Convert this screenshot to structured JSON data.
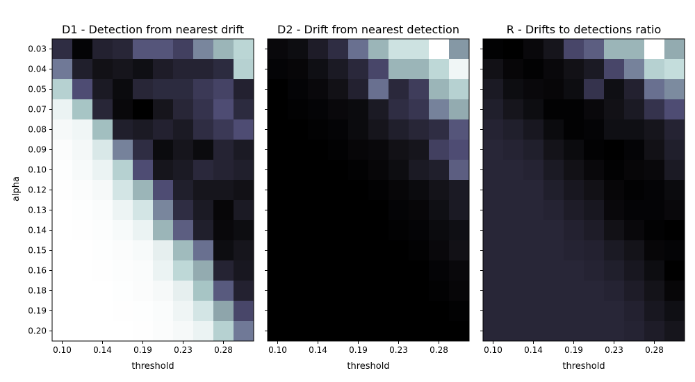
{
  "figure": {
    "ylabel": "alpha",
    "alpha_ticks": [
      "0.03",
      "0.04",
      "0.05",
      "0.07",
      "0.08",
      "0.09",
      "0.10",
      "0.12",
      "0.13",
      "0.14",
      "0.15",
      "0.16",
      "0.18",
      "0.19",
      "0.20"
    ],
    "threshold_ticks": [
      "0.10",
      "0.14",
      "0.19",
      "0.23",
      "0.28"
    ],
    "colormap": "bone_r",
    "colormap_stops": [
      "#ffffff",
      "#f4f8f8",
      "#e2eded",
      "#c4dddc",
      "#a7c5c5",
      "#8ea5ab",
      "#707997",
      "#4e4c73",
      "#2f2d43",
      "#16151c",
      "#000000"
    ]
  },
  "chart_data": [
    {
      "type": "heatmap",
      "title": "D1 - Detection from nearest drift",
      "xlabel": "threshold",
      "ylabel": "alpha",
      "columns": 10,
      "rows": 15,
      "x_tick_labels": [
        "0.10",
        "0.14",
        "0.19",
        "0.23",
        "0.28"
      ],
      "y_tick_labels": [
        "0.03",
        "0.04",
        "0.05",
        "0.07",
        "0.08",
        "0.09",
        "0.10",
        "0.12",
        "0.13",
        "0.14",
        "0.15",
        "0.16",
        "0.18",
        "0.19",
        "0.20"
      ],
      "values": [
        [
          0.8,
          0.98,
          0.85,
          0.83,
          0.68,
          0.68,
          0.74,
          0.57,
          0.45,
          0.33
        ],
        [
          0.6,
          0.86,
          0.92,
          0.9,
          0.93,
          0.87,
          0.84,
          0.84,
          0.81,
          0.35
        ],
        [
          0.35,
          0.7,
          0.88,
          0.95,
          0.83,
          0.81,
          0.81,
          0.76,
          0.73,
          0.85
        ],
        [
          0.15,
          0.4,
          0.83,
          0.96,
          1.0,
          0.9,
          0.83,
          0.78,
          0.7,
          0.81
        ],
        [
          0.08,
          0.12,
          0.42,
          0.86,
          0.88,
          0.85,
          0.88,
          0.8,
          0.76,
          0.7
        ],
        [
          0.04,
          0.1,
          0.23,
          0.58,
          0.8,
          0.95,
          0.9,
          0.95,
          0.84,
          0.88
        ],
        [
          0.02,
          0.07,
          0.15,
          0.35,
          0.7,
          0.9,
          0.88,
          0.82,
          0.84,
          0.86
        ],
        [
          0.01,
          0.04,
          0.08,
          0.25,
          0.45,
          0.7,
          0.86,
          0.9,
          0.9,
          0.92
        ],
        [
          0.0,
          0.02,
          0.05,
          0.14,
          0.25,
          0.57,
          0.8,
          0.88,
          0.97,
          0.88
        ],
        [
          0.0,
          0.01,
          0.03,
          0.07,
          0.15,
          0.45,
          0.66,
          0.86,
          0.96,
          0.94
        ],
        [
          0.0,
          0.0,
          0.02,
          0.04,
          0.07,
          0.18,
          0.43,
          0.62,
          0.94,
          0.9
        ],
        [
          0.0,
          0.0,
          0.01,
          0.03,
          0.05,
          0.15,
          0.32,
          0.48,
          0.84,
          0.89
        ],
        [
          0.0,
          0.0,
          0.0,
          0.02,
          0.04,
          0.08,
          0.18,
          0.4,
          0.67,
          0.85
        ],
        [
          0.0,
          0.0,
          0.0,
          0.01,
          0.02,
          0.05,
          0.13,
          0.25,
          0.5,
          0.72
        ],
        [
          0.0,
          0.0,
          0.0,
          0.0,
          0.01,
          0.04,
          0.08,
          0.15,
          0.35,
          0.6
        ]
      ]
    },
    {
      "type": "heatmap",
      "title": "D2 - Drift from nearest detection",
      "xlabel": "threshold",
      "ylabel": "",
      "columns": 10,
      "rows": 15,
      "x_tick_labels": [
        "0.10",
        "0.14",
        "0.19",
        "0.23",
        "0.28"
      ],
      "y_tick_labels": [],
      "values": [
        [
          0.96,
          0.94,
          0.87,
          0.8,
          0.62,
          0.45,
          0.27,
          0.27,
          0.0,
          0.53
        ],
        [
          0.98,
          0.97,
          0.93,
          0.88,
          0.82,
          0.72,
          0.45,
          0.45,
          0.32,
          0.12
        ],
        [
          1.0,
          0.98,
          0.96,
          0.92,
          0.85,
          0.62,
          0.82,
          0.75,
          0.45,
          0.35
        ],
        [
          1.0,
          0.99,
          0.98,
          0.96,
          0.95,
          0.88,
          0.8,
          0.77,
          0.58,
          0.48
        ],
        [
          1.0,
          1.0,
          0.99,
          0.98,
          0.95,
          0.9,
          0.86,
          0.83,
          0.8,
          0.68
        ],
        [
          1.0,
          1.0,
          1.0,
          0.99,
          0.97,
          0.96,
          0.92,
          0.9,
          0.74,
          0.7
        ],
        [
          1.0,
          1.0,
          1.0,
          1.0,
          0.99,
          0.97,
          0.94,
          0.88,
          0.86,
          0.66
        ],
        [
          1.0,
          1.0,
          1.0,
          1.0,
          1.0,
          0.99,
          0.97,
          0.95,
          0.91,
          0.88
        ],
        [
          1.0,
          1.0,
          1.0,
          1.0,
          1.0,
          1.0,
          0.98,
          0.97,
          0.93,
          0.88
        ],
        [
          1.0,
          1.0,
          1.0,
          1.0,
          1.0,
          1.0,
          0.99,
          0.98,
          0.95,
          0.93
        ],
        [
          1.0,
          1.0,
          1.0,
          1.0,
          1.0,
          1.0,
          1.0,
          0.99,
          0.96,
          0.92
        ],
        [
          1.0,
          1.0,
          1.0,
          1.0,
          1.0,
          1.0,
          1.0,
          1.0,
          0.98,
          0.96
        ],
        [
          1.0,
          1.0,
          1.0,
          1.0,
          1.0,
          1.0,
          1.0,
          1.0,
          0.99,
          0.97
        ],
        [
          1.0,
          1.0,
          1.0,
          1.0,
          1.0,
          1.0,
          1.0,
          1.0,
          1.0,
          0.99
        ],
        [
          1.0,
          1.0,
          1.0,
          1.0,
          1.0,
          1.0,
          1.0,
          1.0,
          1.0,
          1.0
        ]
      ]
    },
    {
      "type": "heatmap",
      "title": "R - Drifts to detections ratio",
      "xlabel": "threshold",
      "ylabel": "",
      "columns": 10,
      "rows": 15,
      "x_tick_labels": [
        "0.10",
        "0.14",
        "0.19",
        "0.23",
        "0.28"
      ],
      "y_tick_labels": [],
      "values": [
        [
          0.99,
          1.0,
          0.96,
          0.9,
          0.72,
          0.66,
          0.45,
          0.45,
          0.0,
          0.48
        ],
        [
          0.92,
          0.97,
          0.99,
          0.96,
          0.92,
          0.88,
          0.72,
          0.58,
          0.35,
          0.3
        ],
        [
          0.88,
          0.94,
          0.96,
          0.97,
          0.94,
          0.78,
          0.93,
          0.85,
          0.62,
          0.56
        ],
        [
          0.86,
          0.9,
          0.94,
          0.99,
          0.99,
          0.96,
          0.92,
          0.88,
          0.78,
          0.7
        ],
        [
          0.84,
          0.86,
          0.89,
          0.95,
          0.99,
          0.98,
          0.93,
          0.93,
          0.9,
          0.84
        ],
        [
          0.83,
          0.84,
          0.86,
          0.91,
          0.95,
          0.99,
          1.0,
          0.98,
          0.92,
          0.86
        ],
        [
          0.83,
          0.83,
          0.84,
          0.88,
          0.92,
          0.96,
          0.99,
          0.97,
          0.96,
          0.88
        ],
        [
          0.83,
          0.83,
          0.83,
          0.86,
          0.89,
          0.92,
          0.97,
          0.99,
          0.98,
          0.95
        ],
        [
          0.83,
          0.83,
          0.83,
          0.84,
          0.87,
          0.89,
          0.96,
          0.98,
          0.98,
          0.96
        ],
        [
          0.83,
          0.83,
          0.83,
          0.83,
          0.85,
          0.87,
          0.92,
          0.96,
          0.99,
          1.0
        ],
        [
          0.83,
          0.83,
          0.83,
          0.83,
          0.84,
          0.85,
          0.88,
          0.91,
          0.97,
          0.98
        ],
        [
          0.83,
          0.83,
          0.83,
          0.83,
          0.83,
          0.84,
          0.86,
          0.89,
          0.94,
          1.0
        ],
        [
          0.83,
          0.83,
          0.83,
          0.83,
          0.83,
          0.83,
          0.84,
          0.87,
          0.91,
          0.97
        ],
        [
          0.83,
          0.83,
          0.83,
          0.83,
          0.83,
          0.83,
          0.83,
          0.85,
          0.89,
          0.93
        ],
        [
          0.83,
          0.83,
          0.83,
          0.83,
          0.83,
          0.83,
          0.83,
          0.84,
          0.87,
          0.9
        ]
      ]
    }
  ]
}
